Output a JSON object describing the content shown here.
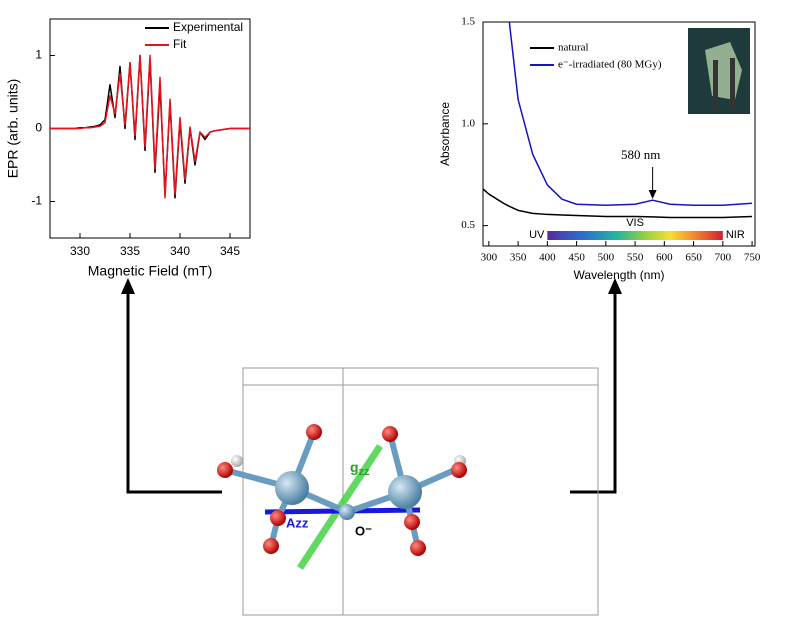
{
  "chart_data": [
    {
      "type": "line",
      "xlabel": "Magnetic Field (mT)",
      "ylabel": "EPR (arb. units)",
      "x": [
        327,
        327.5,
        328,
        328.5,
        329,
        329.5,
        330,
        330.5,
        331,
        331.5,
        332,
        332.5,
        333,
        333.5,
        334,
        334.5,
        335,
        335.5,
        336,
        336.5,
        337,
        337.5,
        338,
        338.5,
        339,
        339.5,
        340,
        340.5,
        341,
        341.5,
        342,
        342.5,
        343,
        343.5,
        344,
        344.5,
        345,
        345.5,
        346,
        346.5,
        347
      ],
      "series": [
        {
          "name": "Experimental",
          "color": "#000000",
          "values": [
            0,
            0,
            0,
            0,
            0,
            0,
            0.01,
            0.01,
            0.02,
            0.03,
            0.05,
            0.12,
            0.6,
            0.15,
            0.85,
            0,
            0.9,
            -0.15,
            1,
            -0.3,
            0.95,
            -0.6,
            0.6,
            -0.9,
            0.35,
            -0.95,
            0.1,
            -0.75,
            0,
            -0.5,
            -0.05,
            -0.15,
            -0.05,
            -0.03,
            -0.02,
            -0.01,
            0,
            0,
            0,
            0,
            0
          ]
        },
        {
          "name": "Fit",
          "color": "#e8141a",
          "values": [
            0,
            0,
            0,
            0,
            0,
            0,
            0,
            0.01,
            0.01,
            0.02,
            0.03,
            0.08,
            0.45,
            0.2,
            0.75,
            0.05,
            0.9,
            -0.1,
            1,
            -0.25,
            1,
            -0.55,
            0.7,
            -0.95,
            0.4,
            -0.9,
            0.15,
            -0.7,
            0.02,
            -0.45,
            -0.05,
            -0.12,
            -0.05,
            -0.03,
            -0.02,
            -0.01,
            0,
            0,
            0,
            0,
            0
          ]
        }
      ],
      "xlim": [
        327,
        347
      ],
      "xticks": [
        330,
        335,
        340,
        345
      ],
      "ylim": [
        -1.5,
        1.5
      ],
      "yticks": [
        -1,
        0,
        1
      ],
      "legend": "upper right"
    },
    {
      "type": "line",
      "xlabel": "Wavelength (nm)",
      "ylabel": "Absorbance",
      "x": [
        290,
        300,
        325,
        335,
        350,
        375,
        400,
        425,
        450,
        500,
        550,
        580,
        610,
        650,
        700,
        750
      ],
      "series": [
        {
          "name": "natural",
          "color": "#000000",
          "values": [
            0.68,
            0.655,
            0.61,
            0.595,
            0.575,
            0.56,
            0.555,
            0.552,
            0.55,
            0.545,
            0.545,
            0.543,
            0.54,
            0.54,
            0.54,
            0.545
          ]
        },
        {
          "name": "e⁻-irradiated (80 MGy)",
          "color": "#1414c8",
          "values": [
            null,
            null,
            null,
            1.5,
            1.12,
            0.85,
            0.7,
            0.63,
            0.605,
            0.6,
            0.605,
            0.625,
            0.605,
            0.6,
            0.6,
            0.61
          ]
        }
      ],
      "xlim": [
        290,
        755
      ],
      "xticks": [
        300,
        350,
        400,
        450,
        500,
        550,
        600,
        650,
        700,
        750
      ],
      "ylim": [
        0.4,
        1.5
      ],
      "yticks": [
        0.5,
        {
          "value": 1,
          "label": "1.0"
        },
        1.5
      ],
      "legend": "upper left",
      "annotation": {
        "text": "580 nm",
        "x": 580
      },
      "spectrum_bar": {
        "x": [
          400,
          700
        ],
        "labels": [
          "UV",
          "VIS",
          "NIR"
        ]
      }
    }
  ],
  "diagram": {
    "labels": {
      "gzz": {
        "symbol": "g",
        "subscript": "zz"
      },
      "azz": "Azz",
      "o": "O⁻"
    }
  }
}
